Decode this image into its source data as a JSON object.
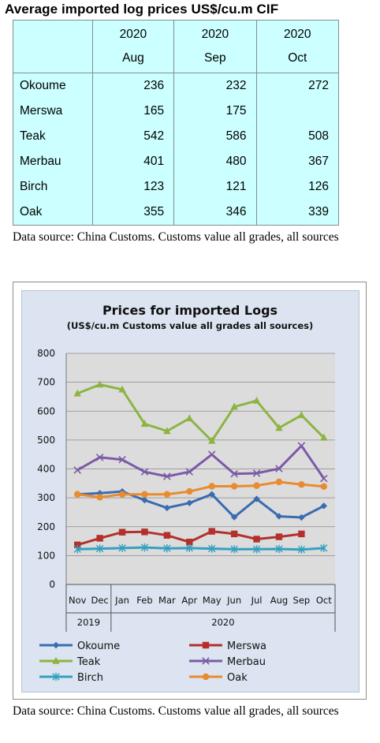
{
  "table": {
    "title": "Average imported log prices US$/cu.m CIF",
    "header_years": [
      "2020",
      "2020",
      "2020"
    ],
    "header_months": [
      "Aug",
      "Sep",
      "Oct"
    ],
    "rows": [
      {
        "name": "Okoume",
        "values": [
          "236",
          "232",
          "272"
        ]
      },
      {
        "name": "Merswa",
        "values": [
          "165",
          "175",
          ""
        ]
      },
      {
        "name": "Teak",
        "values": [
          "542",
          "586",
          "508"
        ]
      },
      {
        "name": "Merbau",
        "values": [
          "401",
          "480",
          "367"
        ]
      },
      {
        "name": "Birch",
        "values": [
          "123",
          "121",
          "126"
        ]
      },
      {
        "name": "Oak",
        "values": [
          "355",
          "346",
          "339"
        ]
      }
    ],
    "source": "Data source: China Customs. Customs value all grades, all sources"
  },
  "chart_source": "Data source: China Customs. Customs value all grades, all sources",
  "chart_data": {
    "type": "line",
    "title": "Prices for imported Logs",
    "subtitle": "(US$/cu.m Customs value all grades all sources)",
    "categories": [
      "Nov",
      "Dec",
      "Jan",
      "Feb",
      "Mar",
      "Apr",
      "May",
      "Jun",
      "Jul",
      "Aug",
      "Sep",
      "Oct"
    ],
    "year_groups": [
      {
        "label": "2019",
        "from": 0,
        "to": 1
      },
      {
        "label": "2020",
        "from": 2,
        "to": 11
      }
    ],
    "ylim": [
      0,
      800
    ],
    "yticks": [
      "0",
      "100",
      "200",
      "300",
      "400",
      "500",
      "600",
      "700",
      "800"
    ],
    "grid": true,
    "legend_position": "bottom",
    "series": [
      {
        "name": "Okoume",
        "color": "#3a6cb0",
        "marker": "diamond",
        "values": [
          312,
          316,
          322,
          292,
          265,
          282,
          312,
          233,
          296,
          236,
          232,
          272
        ]
      },
      {
        "name": "Merswa",
        "color": "#b3302c",
        "marker": "square",
        "values": [
          137,
          160,
          181,
          182,
          170,
          147,
          184,
          175,
          157,
          165,
          175,
          null
        ]
      },
      {
        "name": "Teak",
        "color": "#8db442",
        "marker": "triangle",
        "values": [
          661,
          692,
          675,
          556,
          531,
          575,
          497,
          615,
          636,
          542,
          586,
          508
        ]
      },
      {
        "name": "Merbau",
        "color": "#7b5aa6",
        "marker": "x",
        "values": [
          396,
          440,
          432,
          390,
          374,
          390,
          450,
          383,
          385,
          401,
          480,
          367
        ]
      },
      {
        "name": "Birch",
        "color": "#35a0bf",
        "marker": "asterisk",
        "values": [
          122,
          124,
          126,
          128,
          125,
          126,
          124,
          122,
          122,
          123,
          121,
          126
        ]
      },
      {
        "name": "Oak",
        "color": "#e98b2f",
        "marker": "circle",
        "values": [
          312,
          302,
          312,
          312,
          312,
          322,
          340,
          340,
          342,
          355,
          346,
          339
        ]
      }
    ]
  }
}
